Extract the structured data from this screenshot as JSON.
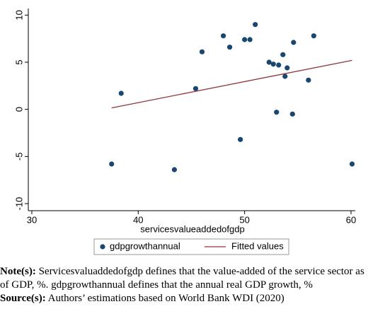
{
  "chart_data": {
    "type": "scatter",
    "x_label": "servicesvalueaddedofgdp",
    "xlim": [
      29.67,
      60.4
    ],
    "xticks": [
      30,
      40,
      50,
      60
    ],
    "ylim": [
      -10.75,
      10.7
    ],
    "yticks": [
      -10,
      -5,
      0,
      5,
      10
    ],
    "grid": false,
    "series": [
      {
        "name": "gdpgrowthannual",
        "color": "#1a476f",
        "kind": "points",
        "x": [
          37.5,
          38.4,
          43.4,
          45.4,
          46.0,
          48.0,
          48.6,
          49.6,
          50.0,
          50.5,
          51.0,
          52.3,
          52.7,
          53.0,
          53.2,
          53.6,
          53.8,
          54.0,
          54.5,
          54.6,
          56.0,
          56.5,
          60.1
        ],
        "values": [
          -5.8,
          1.7,
          -6.4,
          2.2,
          6.1,
          7.8,
          6.6,
          -3.2,
          7.4,
          7.4,
          9.0,
          5.0,
          4.8,
          -0.3,
          4.7,
          5.8,
          3.5,
          4.4,
          -0.5,
          7.1,
          3.1,
          7.8,
          -5.8
        ]
      },
      {
        "name": "Fitted values",
        "color": "#90353b",
        "kind": "line",
        "x": [
          37.5,
          60.1
        ],
        "values": [
          0.15,
          5.2
        ]
      }
    ]
  },
  "notes": [
    {
      "label": "Note(s):",
      "text": " Servicesvaluaddedofgdp defines that the value-added of the service sector as of GDP, %. gdpgrowthannual defines that the annual real GDP growth, %"
    },
    {
      "label": "Source(s):",
      "text": " Authors’ estimations based on World Bank WDI (2020)"
    }
  ]
}
